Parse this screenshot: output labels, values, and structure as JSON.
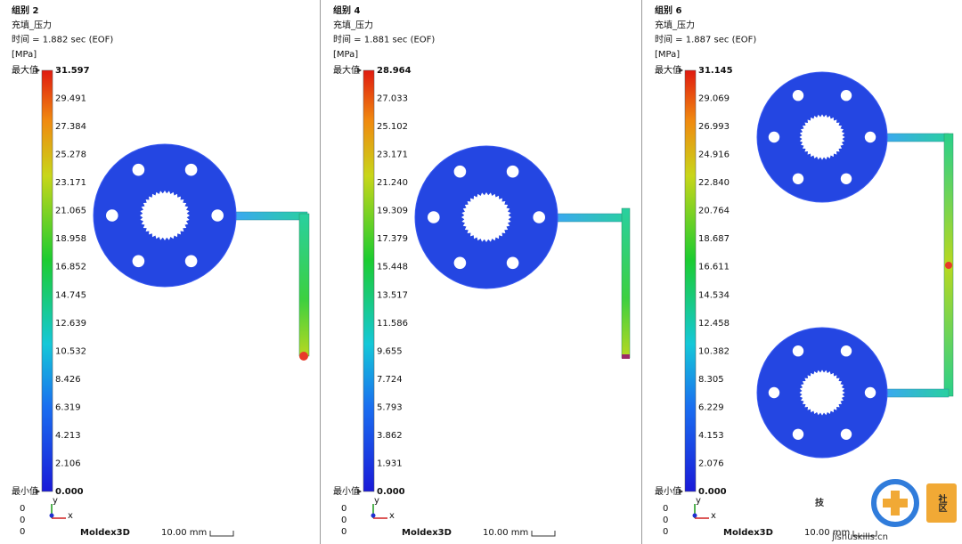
{
  "panels": [
    {
      "group": "组别 2",
      "result": "充填_压力",
      "time": "时间 = 1.882 sec (EOF)",
      "unit": "[MPa]",
      "max_label": "最大值",
      "min_label": "最小值",
      "scale_ticks": [
        "31.597",
        "29.491",
        "27.384",
        "25.278",
        "23.171",
        "21.065",
        "18.958",
        "16.852",
        "14.745",
        "12.639",
        "10.532",
        "8.426",
        "6.319",
        "4.213",
        "2.106",
        "0.000"
      ],
      "coords": [
        "0",
        "0",
        "0"
      ],
      "axis_labels": [
        "y",
        "x"
      ],
      "logo": "Moldex3D",
      "scale_bar": "10.00 mm"
    },
    {
      "group": "组别 4",
      "result": "充填_压力",
      "time": "时间 = 1.881 sec (EOF)",
      "unit": "[MPa]",
      "max_label": "最大值",
      "min_label": "最小值",
      "scale_ticks": [
        "28.964",
        "27.033",
        "25.102",
        "23.171",
        "21.240",
        "19.309",
        "17.379",
        "15.448",
        "13.517",
        "11.586",
        "9.655",
        "7.724",
        "5.793",
        "3.862",
        "1.931",
        "0.000"
      ],
      "coords": [
        "0",
        "0",
        "0"
      ],
      "axis_labels": [
        "y",
        "x"
      ],
      "logo": "Moldex3D",
      "scale_bar": "10.00 mm"
    },
    {
      "group": "组别 6",
      "result": "充填_压力",
      "time": "时间 = 1.887 sec (EOF)",
      "unit": "[MPa]",
      "max_label": "最大值",
      "min_label": "最小值",
      "scale_ticks": [
        "31.145",
        "29.069",
        "26.993",
        "24.916",
        "22.840",
        "20.764",
        "18.687",
        "16.611",
        "14.534",
        "12.458",
        "10.382",
        "8.305",
        "6.229",
        "4.153",
        "2.076",
        "0.000"
      ],
      "coords": [
        "0",
        "0",
        "0"
      ],
      "axis_labels": [
        "y",
        "x"
      ],
      "logo": "Moldex3D",
      "scale_bar": "10.00 mm"
    }
  ],
  "watermark": {
    "char": "技",
    "community": "社区",
    "site": "jishuskills.cn"
  }
}
